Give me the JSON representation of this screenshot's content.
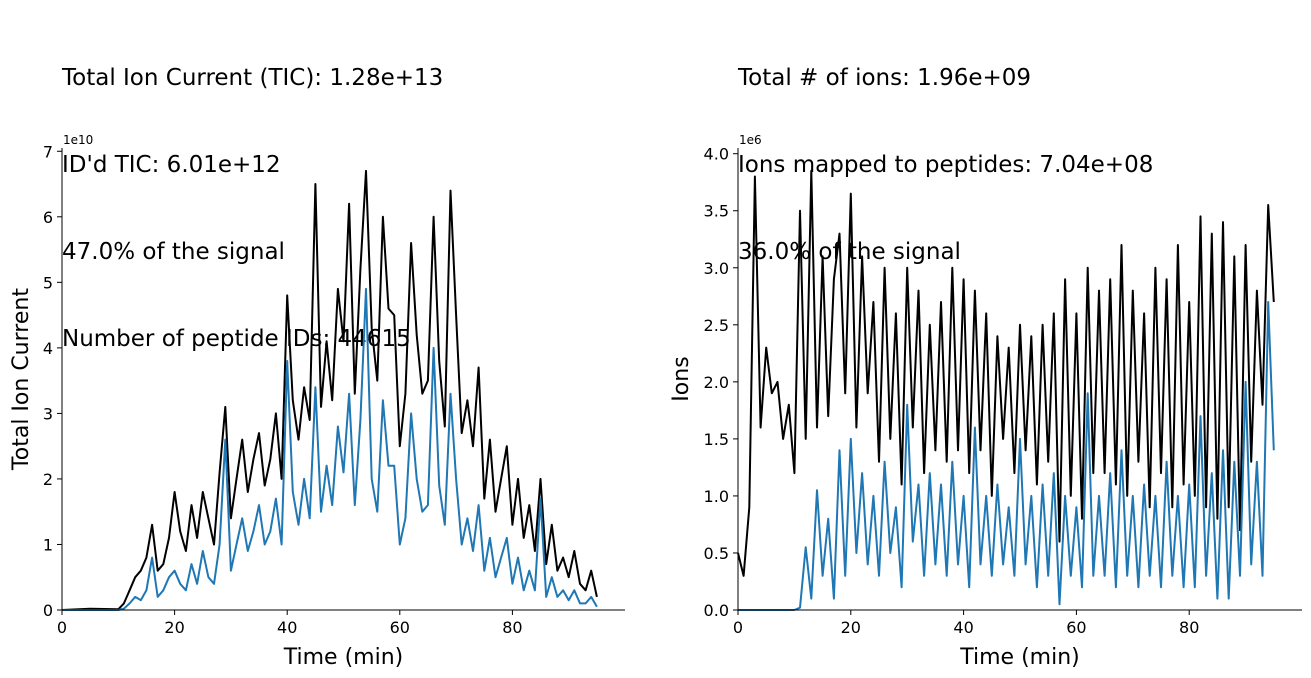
{
  "chart_data": [
    {
      "type": "line",
      "title_lines": [
        "Total Ion Current (TIC): 1.28e+13",
        "ID'd TIC: 6.01e+12",
        "47.0% of the signal",
        "Number of peptide IDs: 44615"
      ],
      "xlabel": "Time (min)",
      "ylabel": "Total Ion Current",
      "y_offset_label": "1e10",
      "xlim": [
        0,
        100
      ],
      "ylim": [
        0,
        7.05
      ],
      "x_ticks": [
        0,
        20,
        40,
        60,
        80
      ],
      "y_ticks": [
        0,
        1,
        2,
        3,
        4,
        5,
        6,
        7
      ],
      "grid": false,
      "series": [
        {
          "color": "#000000",
          "x": [
            0,
            5,
            10,
            11,
            12,
            13,
            14,
            15,
            16,
            17,
            18,
            19,
            20,
            21,
            22,
            23,
            24,
            25,
            26,
            27,
            28,
            29,
            30,
            31,
            32,
            33,
            34,
            35,
            36,
            37,
            38,
            39,
            40,
            41,
            42,
            43,
            44,
            45,
            46,
            47,
            48,
            49,
            50,
            51,
            52,
            53,
            54,
            55,
            56,
            57,
            58,
            59,
            60,
            61,
            62,
            63,
            64,
            65,
            66,
            67,
            68,
            69,
            70,
            71,
            72,
            73,
            74,
            75,
            76,
            77,
            78,
            79,
            80,
            81,
            82,
            83,
            84,
            85,
            86,
            87,
            88,
            89,
            90,
            91,
            92,
            93,
            94,
            95
          ],
          "values": [
            0,
            0.02,
            0.01,
            0.1,
            0.3,
            0.5,
            0.6,
            0.8,
            1.3,
            0.6,
            0.7,
            1.1,
            1.8,
            1.2,
            0.9,
            1.6,
            1.1,
            1.8,
            1.4,
            1.0,
            2.1,
            3.1,
            1.4,
            2.0,
            2.6,
            1.8,
            2.3,
            2.7,
            1.9,
            2.3,
            3.0,
            2.0,
            4.8,
            3.2,
            2.6,
            3.4,
            2.9,
            6.5,
            3.1,
            4.1,
            3.2,
            4.9,
            4.1,
            6.2,
            3.3,
            5.2,
            6.7,
            4.3,
            3.5,
            6.0,
            4.6,
            4.5,
            2.5,
            3.3,
            5.6,
            4.2,
            3.3,
            3.5,
            6.0,
            3.8,
            2.8,
            6.4,
            4.5,
            2.7,
            3.2,
            2.5,
            3.7,
            1.7,
            2.6,
            1.5,
            2.0,
            2.5,
            1.3,
            2.0,
            1.1,
            1.6,
            0.9,
            2.0,
            0.7,
            1.3,
            0.6,
            0.8,
            0.5,
            0.9,
            0.4,
            0.3,
            0.6,
            0.2
          ]
        },
        {
          "color": "#1f77b4",
          "x": [
            0,
            5,
            10,
            11,
            12,
            13,
            14,
            15,
            16,
            17,
            18,
            19,
            20,
            21,
            22,
            23,
            24,
            25,
            26,
            27,
            28,
            29,
            30,
            31,
            32,
            33,
            34,
            35,
            36,
            37,
            38,
            39,
            40,
            41,
            42,
            43,
            44,
            45,
            46,
            47,
            48,
            49,
            50,
            51,
            52,
            53,
            54,
            55,
            56,
            57,
            58,
            59,
            60,
            61,
            62,
            63,
            64,
            65,
            66,
            67,
            68,
            69,
            70,
            71,
            72,
            73,
            74,
            75,
            76,
            77,
            78,
            79,
            80,
            81,
            82,
            83,
            84,
            85,
            86,
            87,
            88,
            89,
            90,
            91,
            92,
            93,
            94,
            95
          ],
          "values": [
            0,
            0,
            0,
            0.02,
            0.1,
            0.2,
            0.15,
            0.3,
            0.8,
            0.2,
            0.3,
            0.5,
            0.6,
            0.4,
            0.3,
            0.7,
            0.4,
            0.9,
            0.5,
            0.4,
            1.0,
            2.6,
            0.6,
            1.0,
            1.4,
            0.9,
            1.2,
            1.6,
            1.0,
            1.2,
            1.7,
            1.0,
            3.8,
            1.8,
            1.3,
            2.0,
            1.4,
            3.4,
            1.5,
            2.2,
            1.6,
            2.8,
            2.1,
            3.3,
            1.6,
            2.9,
            4.9,
            2.0,
            1.5,
            3.2,
            2.2,
            2.2,
            1.0,
            1.4,
            3.0,
            2.0,
            1.5,
            1.6,
            4.0,
            1.9,
            1.3,
            3.3,
            2.0,
            1.0,
            1.4,
            0.9,
            1.6,
            0.6,
            1.1,
            0.5,
            0.8,
            1.1,
            0.4,
            0.8,
            0.3,
            0.6,
            0.3,
            1.7,
            0.2,
            0.5,
            0.2,
            0.3,
            0.15,
            0.3,
            0.1,
            0.1,
            0.2,
            0.05
          ]
        }
      ]
    },
    {
      "type": "line",
      "title_lines": [
        "Total # of ions: 1.96e+09",
        "Ions mapped to peptides: 7.04e+08",
        "36.0% of the signal"
      ],
      "xlabel": "Time (min)",
      "ylabel": "Ions",
      "y_offset_label": "1e6",
      "xlim": [
        0,
        100
      ],
      "ylim": [
        0,
        4.05
      ],
      "x_ticks": [
        0,
        20,
        40,
        60,
        80
      ],
      "y_ticks": [
        "0.0",
        "0.5",
        "1.0",
        "1.5",
        "2.0",
        "2.5",
        "3.0",
        "3.5",
        "4.0"
      ],
      "grid": false,
      "series": [
        {
          "color": "#000000",
          "x": [
            0,
            1,
            2,
            3,
            4,
            5,
            6,
            7,
            8,
            9,
            10,
            11,
            12,
            13,
            14,
            15,
            16,
            17,
            18,
            19,
            20,
            21,
            22,
            23,
            24,
            25,
            26,
            27,
            28,
            29,
            30,
            31,
            32,
            33,
            34,
            35,
            36,
            37,
            38,
            39,
            40,
            41,
            42,
            43,
            44,
            45,
            46,
            47,
            48,
            49,
            50,
            51,
            52,
            53,
            54,
            55,
            56,
            57,
            58,
            59,
            60,
            61,
            62,
            63,
            64,
            65,
            66,
            67,
            68,
            69,
            70,
            71,
            72,
            73,
            74,
            75,
            76,
            77,
            78,
            79,
            80,
            81,
            82,
            83,
            84,
            85,
            86,
            87,
            88,
            89,
            90,
            91,
            92,
            93,
            94,
            95
          ],
          "values": [
            0.5,
            0.3,
            0.9,
            3.8,
            1.6,
            2.3,
            1.9,
            2.0,
            1.5,
            1.8,
            1.2,
            3.5,
            1.5,
            3.85,
            1.6,
            3.1,
            1.7,
            2.9,
            3.3,
            1.9,
            3.65,
            1.6,
            3.1,
            1.9,
            2.7,
            1.3,
            3.0,
            1.5,
            2.6,
            1.1,
            3.0,
            1.6,
            2.8,
            1.2,
            2.5,
            1.4,
            2.7,
            1.3,
            3.0,
            1.4,
            2.9,
            1.2,
            2.8,
            1.4,
            2.6,
            1.0,
            2.4,
            1.5,
            2.3,
            1.2,
            2.5,
            1.4,
            2.4,
            1.1,
            2.5,
            1.3,
            2.6,
            0.6,
            2.9,
            1.0,
            2.6,
            0.8,
            3.0,
            1.2,
            2.8,
            1.2,
            2.9,
            1.1,
            3.2,
            1.0,
            2.8,
            1.3,
            2.6,
            0.9,
            3.0,
            1.2,
            2.9,
            0.9,
            3.2,
            1.1,
            2.7,
            1.0,
            3.45,
            0.9,
            3.3,
            0.8,
            3.4,
            0.9,
            3.1,
            0.7,
            3.2,
            1.3,
            2.8,
            1.8,
            3.55,
            2.7
          ]
        },
        {
          "color": "#1f77b4",
          "x": [
            0,
            1,
            2,
            3,
            4,
            5,
            6,
            7,
            8,
            9,
            10,
            11,
            12,
            13,
            14,
            15,
            16,
            17,
            18,
            19,
            20,
            21,
            22,
            23,
            24,
            25,
            26,
            27,
            28,
            29,
            30,
            31,
            32,
            33,
            34,
            35,
            36,
            37,
            38,
            39,
            40,
            41,
            42,
            43,
            44,
            45,
            46,
            47,
            48,
            49,
            50,
            51,
            52,
            53,
            54,
            55,
            56,
            57,
            58,
            59,
            60,
            61,
            62,
            63,
            64,
            65,
            66,
            67,
            68,
            69,
            70,
            71,
            72,
            73,
            74,
            75,
            76,
            77,
            78,
            79,
            80,
            81,
            82,
            83,
            84,
            85,
            86,
            87,
            88,
            89,
            90,
            91,
            92,
            93,
            94,
            95
          ],
          "values": [
            0,
            0,
            0,
            0,
            0,
            0,
            0,
            0,
            0,
            0,
            0,
            0.02,
            0.55,
            0.1,
            1.05,
            0.3,
            0.8,
            0.1,
            1.4,
            0.3,
            1.5,
            0.5,
            1.2,
            0.4,
            1.0,
            0.3,
            1.3,
            0.5,
            0.9,
            0.2,
            1.8,
            0.6,
            1.1,
            0.3,
            1.2,
            0.4,
            1.1,
            0.3,
            1.3,
            0.4,
            1.0,
            0.2,
            1.6,
            0.4,
            1.0,
            0.3,
            1.1,
            0.4,
            0.9,
            0.3,
            1.5,
            0.4,
            1.0,
            0.2,
            1.1,
            0.3,
            1.2,
            0.05,
            1.0,
            0.3,
            0.9,
            0.2,
            1.9,
            0.3,
            1.0,
            0.3,
            1.2,
            0.2,
            1.4,
            0.3,
            1.0,
            0.2,
            1.1,
            0.3,
            1.0,
            0.2,
            1.3,
            0.3,
            1.0,
            0.2,
            1.1,
            0.2,
            1.7,
            0.3,
            1.2,
            0.1,
            1.4,
            0.1,
            1.3,
            0.3,
            2.0,
            0.4,
            1.3,
            0.3,
            2.7,
            1.4
          ]
        }
      ]
    }
  ]
}
